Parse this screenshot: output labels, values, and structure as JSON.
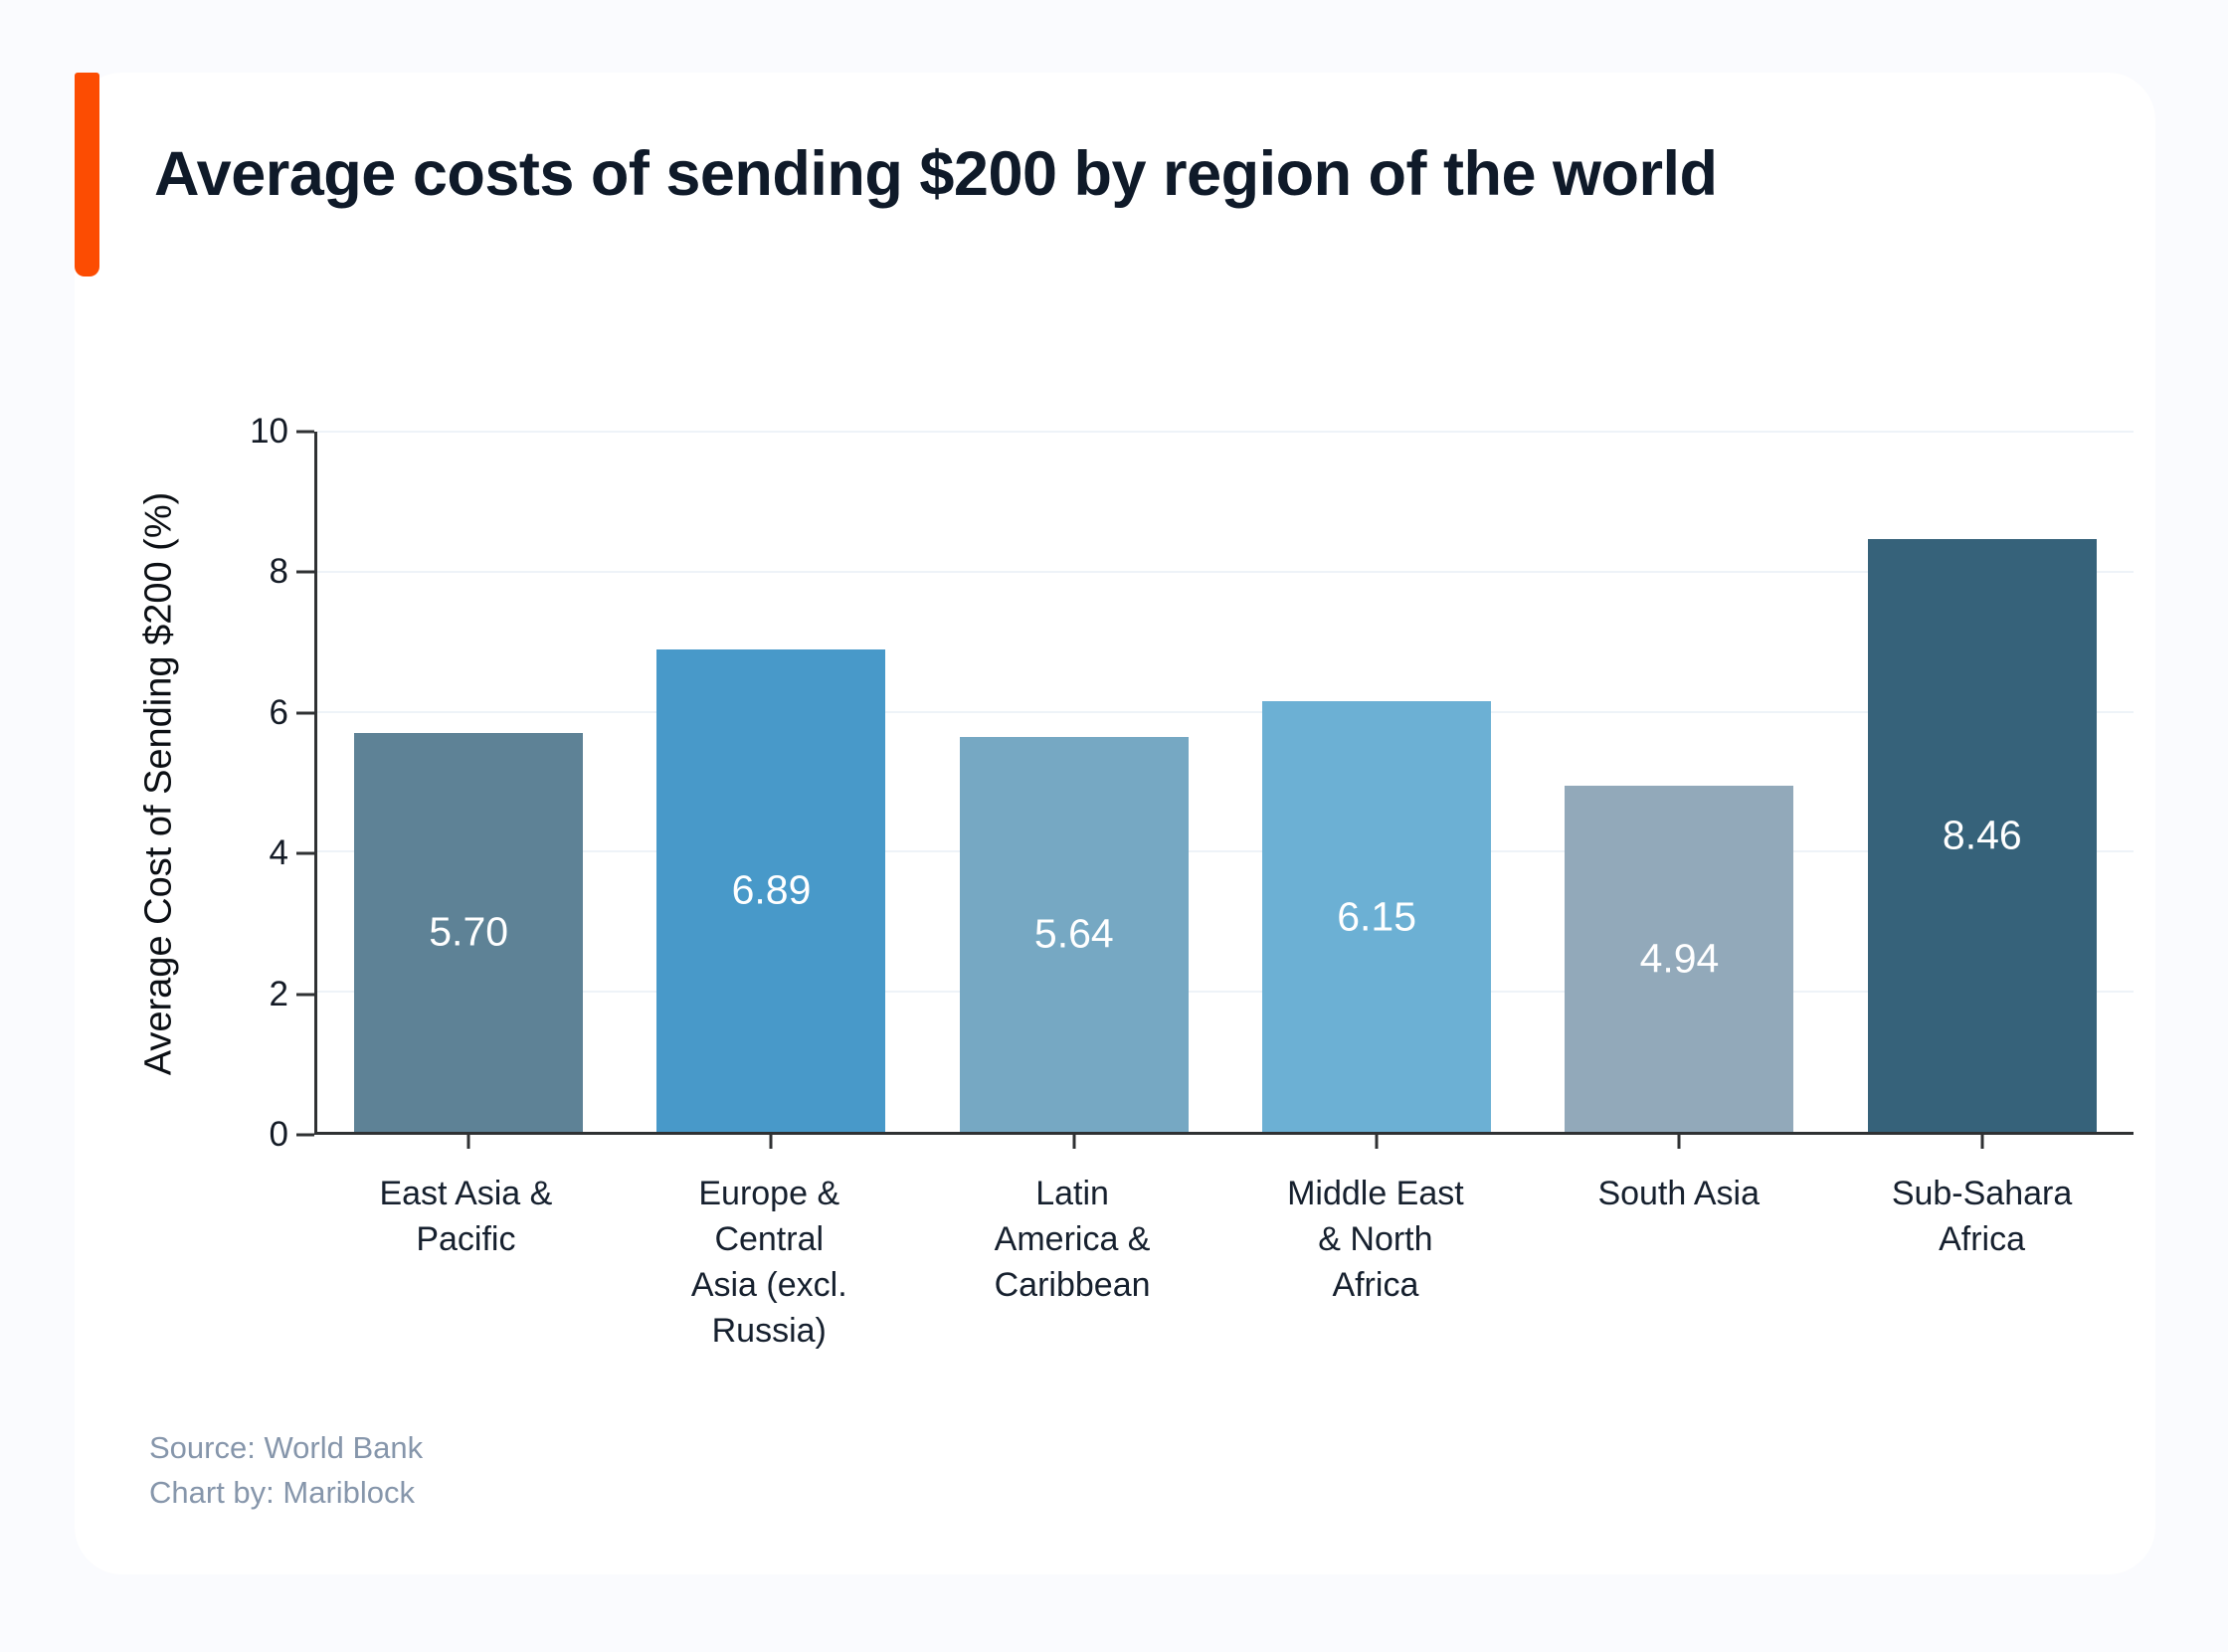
{
  "header": {
    "title": "Average costs of sending $200 by region of the world",
    "accent_color": "#FC4C02"
  },
  "chart_data": {
    "type": "bar",
    "title": "Average costs of sending $200 by region of the world",
    "xlabel": "",
    "ylabel": "Average Cost of Sending $200 (%)",
    "ylim": [
      0,
      10
    ],
    "yticks": [
      0,
      2,
      4,
      6,
      8,
      10
    ],
    "grid": "horizontal",
    "legend": "none",
    "categories": [
      "East Asia & Pacific",
      "Europe & Central Asia (excl. Russia)",
      "Latin America & Caribbean",
      "Middle East & North Africa",
      "South Asia",
      "Sub-Sahara Africa"
    ],
    "category_label_lines": [
      [
        "East Asia &",
        "Pacific"
      ],
      [
        "Europe &",
        "Central",
        "Asia (excl.",
        "Russia)"
      ],
      [
        "Latin",
        "America &",
        "Caribbean"
      ],
      [
        "Middle East",
        "& North",
        "Africa"
      ],
      [
        "South Asia"
      ],
      [
        "Sub-Sahara",
        "Africa"
      ]
    ],
    "values": [
      5.7,
      6.89,
      5.64,
      6.15,
      4.94,
      8.46
    ],
    "value_labels": [
      "5.70",
      "6.89",
      "5.64",
      "6.15",
      "4.94",
      "8.46"
    ],
    "bar_colors": [
      "#5E8296",
      "#4899C9",
      "#76A8C3",
      "#6CB0D4",
      "#92A9BA",
      "#36627A"
    ],
    "value_label_color": "#FFFFFF"
  },
  "footer": {
    "source": "Source: World Bank",
    "credit": "Chart by: Mariblock",
    "text_color": "#8696AB"
  }
}
